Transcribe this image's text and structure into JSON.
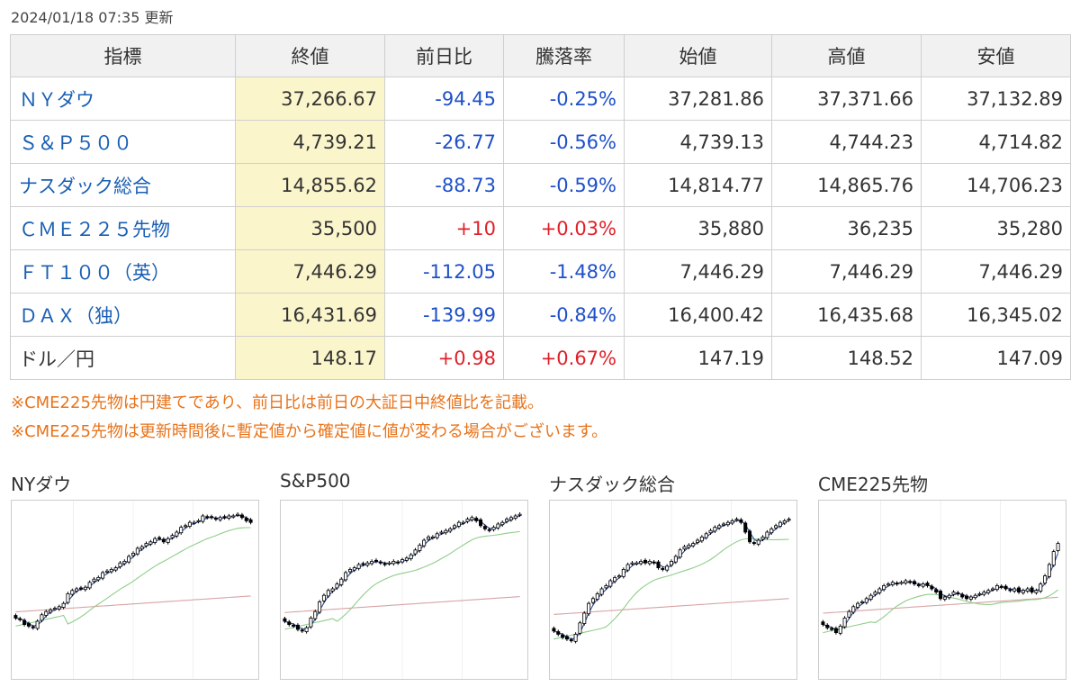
{
  "updated": "2024/01/18 07:35 更新",
  "columns": [
    "指標",
    "終値",
    "前日比",
    "騰落率",
    "始値",
    "高値",
    "安値"
  ],
  "rows": [
    {
      "name": "ＮＹダウ",
      "link": true,
      "close": "37,266.67",
      "change": "-94.45",
      "rate": "-0.25%",
      "dir": "neg",
      "open": "37,281.86",
      "high": "37,371.66",
      "low": "37,132.89"
    },
    {
      "name": "Ｓ＆Ｐ５００",
      "link": true,
      "close": "4,739.21",
      "change": "-26.77",
      "rate": "-0.56%",
      "dir": "neg",
      "open": "4,739.13",
      "high": "4,744.23",
      "low": "4,714.82"
    },
    {
      "name": "ナスダック総合",
      "link": true,
      "close": "14,855.62",
      "change": "-88.73",
      "rate": "-0.59%",
      "dir": "neg",
      "open": "14,814.77",
      "high": "14,865.76",
      "low": "14,706.23"
    },
    {
      "name": "ＣＭＥ２２５先物",
      "link": true,
      "close": "35,500",
      "change": "+10",
      "rate": "+0.03%",
      "dir": "pos",
      "open": "35,880",
      "high": "36,235",
      "low": "35,280"
    },
    {
      "name": "ＦＴ１００（英）",
      "link": true,
      "close": "7,446.29",
      "change": "-112.05",
      "rate": "-1.48%",
      "dir": "neg",
      "open": "7,446.29",
      "high": "7,446.29",
      "low": "7,446.29"
    },
    {
      "name": "ＤＡＸ（独）",
      "link": true,
      "close": "16,431.69",
      "change": "-139.99",
      "rate": "-0.84%",
      "dir": "neg",
      "open": "16,400.42",
      "high": "16,435.68",
      "low": "16,345.02"
    },
    {
      "name": "ドル／円",
      "link": false,
      "close": "148.17",
      "change": "+0.98",
      "rate": "+0.67%",
      "dir": "pos",
      "open": "147.19",
      "high": "148.52",
      "low": "147.09"
    }
  ],
  "notes": [
    "※CME225先物は円建てであり、前日比は前日の大証日中終値比を記載。",
    "※CME225先物は更新時間後に暫定値から確定値に値が変わる場合がございます。"
  ],
  "colors": {
    "up": "#e0202a",
    "down": "#1e50c8",
    "link": "#1a5fb4",
    "note": "#e8731a",
    "highlight": "#fbf5cc",
    "ma_short": "#2b4aa0",
    "ma_mid": "#8fce8a",
    "ma_long": "#d8a3a3"
  },
  "charts": [
    {
      "title": "NYダウ",
      "closes": [
        32,
        31,
        28,
        27,
        26,
        30,
        34,
        36,
        37,
        38,
        39,
        41,
        47,
        49,
        50,
        50,
        51,
        54,
        56,
        57,
        60,
        61,
        62,
        63,
        66,
        67,
        70,
        72,
        75,
        76,
        78,
        79,
        81,
        81,
        79,
        81,
        83,
        85,
        88,
        89,
        91,
        91,
        92,
        95,
        94,
        94,
        93,
        94,
        94,
        95,
        95,
        96,
        94,
        92,
        91
      ]
    },
    {
      "title": "S&P500",
      "closes": [
        30,
        28,
        27,
        25,
        24,
        26,
        32,
        36,
        42,
        46,
        49,
        50,
        53,
        56,
        60,
        62,
        63,
        65,
        65,
        66,
        67,
        67,
        66,
        65,
        66,
        67,
        66,
        68,
        69,
        71,
        74,
        77,
        80,
        82,
        82,
        84,
        85,
        86,
        87,
        89,
        91,
        91,
        93,
        94,
        92,
        89,
        87,
        86,
        88,
        90,
        91,
        93,
        94,
        95,
        96
      ]
    },
    {
      "title": "ナスダック総合",
      "closes": [
        24,
        22,
        20,
        19,
        18,
        22,
        29,
        35,
        41,
        44,
        47,
        50,
        52,
        55,
        57,
        58,
        62,
        65,
        66,
        66,
        67,
        66,
        67,
        66,
        63,
        62,
        64,
        67,
        70,
        74,
        76,
        77,
        78,
        80,
        82,
        84,
        86,
        88,
        89,
        90,
        91,
        92,
        93,
        91,
        85,
        79,
        78,
        80,
        82,
        85,
        87,
        89,
        91,
        92,
        93
      ]
    },
    {
      "title": "CME225先物",
      "closes": [
        28,
        26,
        25,
        23,
        27,
        32,
        36,
        39,
        41,
        42,
        44,
        46,
        48,
        50,
        52,
        53,
        54,
        53,
        54,
        55,
        54,
        53,
        52,
        53,
        52,
        50,
        48,
        44,
        45,
        46,
        48,
        47,
        45,
        44,
        45,
        46,
        47,
        48,
        49,
        50,
        52,
        51,
        50,
        49,
        50,
        48,
        49,
        50,
        48,
        49,
        53,
        58,
        65,
        73,
        78
      ]
    }
  ]
}
